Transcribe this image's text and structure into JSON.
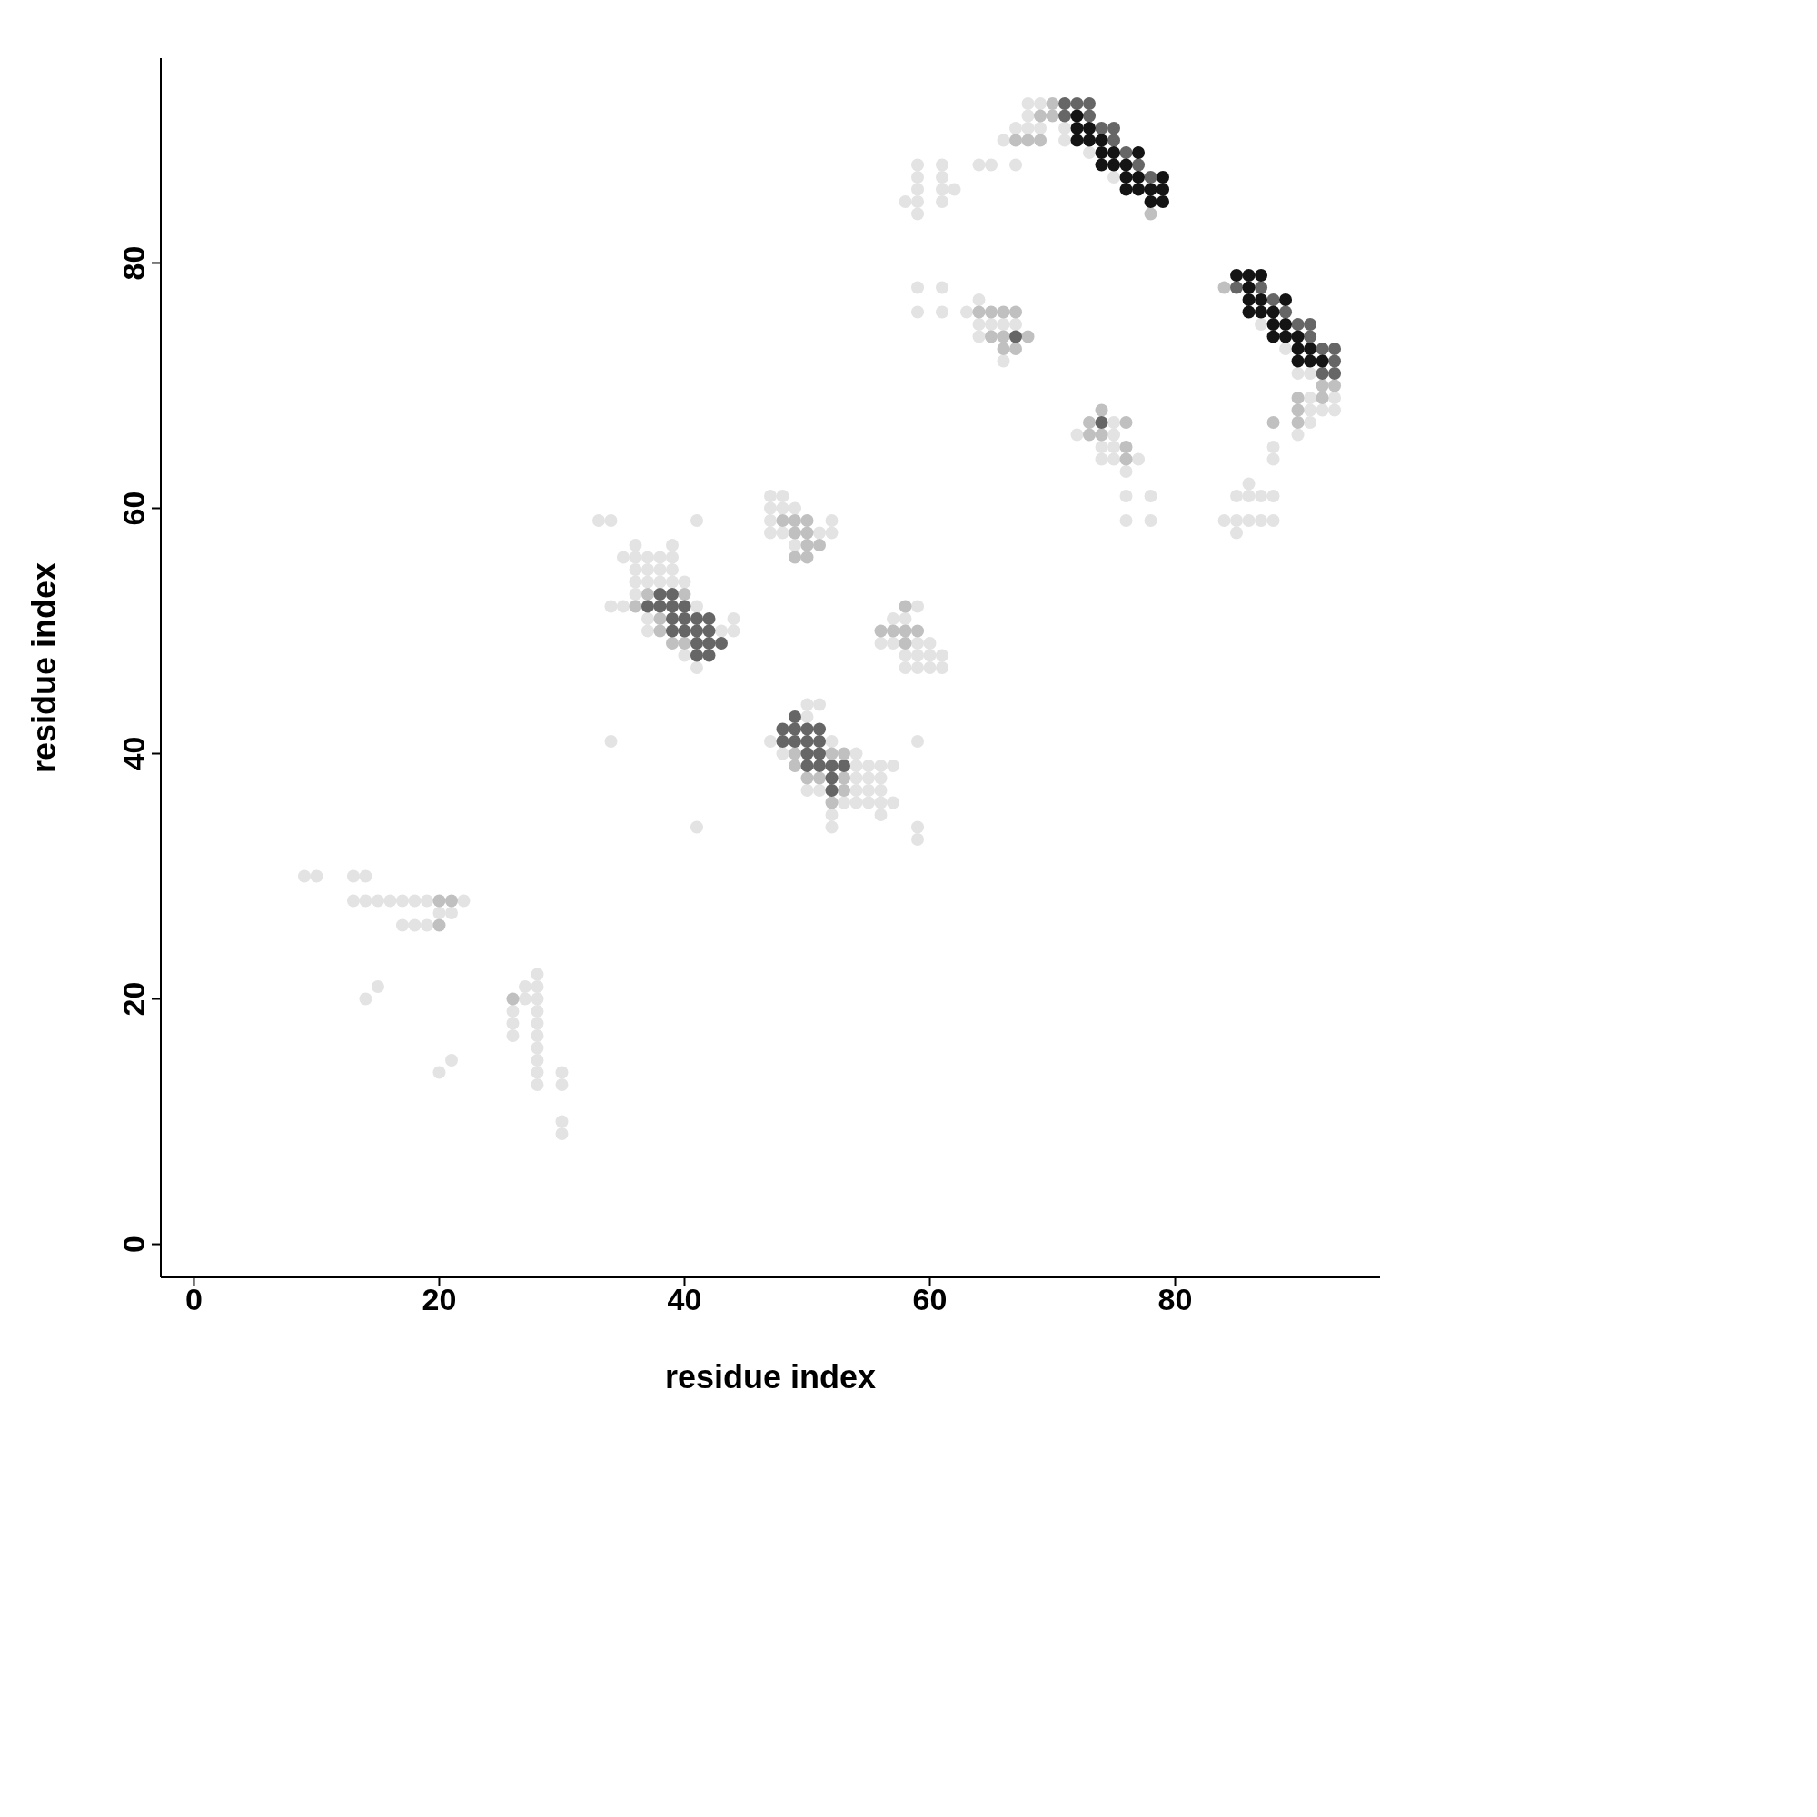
{
  "chart_data": {
    "type": "scatter",
    "xlabel": "residue index",
    "ylabel": "residue index",
    "xlim": [
      -2.7,
      96.7
    ],
    "ylim": [
      -2.7,
      96.7
    ],
    "xticks": [
      0,
      20,
      40,
      60,
      80
    ],
    "yticks": [
      0,
      20,
      40,
      60,
      80
    ],
    "marker": "circle",
    "grid": false,
    "legend": false,
    "series": [
      {
        "color": "#e3e3e3",
        "x": [
          68,
          69,
          68,
          67,
          68,
          69,
          71,
          66,
          71,
          73,
          64,
          65,
          67,
          75,
          87,
          89,
          90,
          91,
          91,
          93,
          91,
          92,
          93,
          91,
          90,
          88,
          88,
          86,
          85,
          86,
          87,
          88,
          84,
          85,
          86,
          87,
          88,
          85,
          59,
          61,
          59,
          61,
          59,
          61,
          62,
          58,
          59,
          61,
          59,
          59,
          61,
          59,
          61,
          63,
          64,
          64,
          65,
          66,
          67,
          64,
          66,
          72,
          75,
          75,
          74,
          75,
          74,
          75,
          77,
          76,
          76,
          78,
          76,
          78,
          33,
          34,
          41,
          36,
          39,
          35,
          36,
          37,
          38,
          39,
          36,
          37,
          38,
          39,
          36,
          37,
          38,
          39,
          40,
          36,
          34,
          35,
          41,
          37,
          44,
          37,
          43,
          44,
          40,
          41,
          47,
          48,
          47,
          48,
          49,
          47,
          52,
          47,
          48,
          51,
          52,
          49,
          59,
          57,
          58,
          56,
          57,
          59,
          60,
          58,
          59,
          60,
          61,
          58,
          59,
          60,
          61,
          50,
          51,
          50,
          47,
          52,
          59,
          48,
          54,
          54,
          55,
          56,
          57,
          54,
          55,
          56,
          50,
          51,
          54,
          55,
          56,
          53,
          54,
          55,
          56,
          57,
          52,
          56,
          52,
          59,
          59,
          34,
          41,
          9,
          10,
          13,
          14,
          13,
          14,
          15,
          16,
          17,
          18,
          19,
          22,
          20,
          21,
          17,
          18,
          19,
          15,
          14,
          28,
          27,
          28,
          27,
          28,
          26,
          28,
          26,
          28,
          26,
          28,
          28,
          28,
          28,
          28,
          30,
          30,
          21,
          20,
          30,
          30
        ],
        "values": [
          93,
          93,
          92,
          91,
          91,
          91,
          91,
          90,
          90,
          89,
          88,
          88,
          88,
          87,
          75,
          73,
          71,
          71,
          69,
          69,
          68,
          68,
          68,
          67,
          66,
          65,
          64,
          62,
          61,
          61,
          61,
          61,
          59,
          59,
          59,
          59,
          59,
          58,
          88,
          88,
          87,
          87,
          86,
          86,
          86,
          85,
          85,
          85,
          84,
          78,
          78,
          76,
          76,
          76,
          77,
          75,
          75,
          75,
          75,
          74,
          72,
          66,
          67,
          66,
          65,
          65,
          64,
          64,
          64,
          63,
          61,
          61,
          59,
          59,
          59,
          59,
          59,
          57,
          57,
          56,
          56,
          56,
          56,
          56,
          55,
          55,
          55,
          55,
          54,
          54,
          54,
          54,
          54,
          53,
          52,
          52,
          52,
          51,
          51,
          50,
          50,
          50,
          48,
          47,
          61,
          61,
          60,
          60,
          60,
          59,
          59,
          58,
          58,
          58,
          58,
          57,
          52,
          51,
          51,
          49,
          49,
          49,
          49,
          48,
          48,
          48,
          48,
          47,
          47,
          47,
          47,
          44,
          44,
          43,
          41,
          41,
          41,
          40,
          40,
          39,
          39,
          39,
          39,
          38,
          38,
          38,
          37,
          37,
          37,
          37,
          37,
          36,
          36,
          36,
          36,
          36,
          35,
          35,
          34,
          34,
          33,
          41,
          34,
          30,
          30,
          30,
          30,
          28,
          28,
          28,
          28,
          28,
          28,
          28,
          28,
          27,
          27,
          26,
          26,
          26,
          21,
          20,
          22,
          21,
          21,
          20,
          20,
          19,
          19,
          18,
          18,
          17,
          17,
          16,
          15,
          14,
          13,
          14,
          13,
          15,
          14,
          10,
          9
        ]
      },
      {
        "color": "#c0c0c0",
        "x": [
          70,
          69,
          70,
          67,
          68,
          69,
          78,
          84,
          92,
          93,
          90,
          92,
          90,
          88,
          90,
          64,
          65,
          66,
          67,
          65,
          66,
          68,
          66,
          67,
          74,
          73,
          76,
          73,
          74,
          76,
          76,
          37,
          40,
          36,
          38,
          38,
          39,
          40,
          48,
          49,
          50,
          49,
          50,
          50,
          51,
          49,
          50,
          56,
          57,
          58,
          59,
          58,
          58,
          49,
          52,
          53,
          49,
          50,
          51,
          53,
          53,
          52,
          20,
          21,
          20,
          26
        ],
        "values": [
          93,
          92,
          92,
          90,
          90,
          90,
          84,
          78,
          70,
          70,
          69,
          69,
          68,
          67,
          67,
          76,
          76,
          76,
          76,
          74,
          74,
          74,
          73,
          73,
          68,
          67,
          67,
          66,
          66,
          65,
          64,
          53,
          53,
          52,
          51,
          50,
          49,
          49,
          59,
          59,
          59,
          58,
          58,
          57,
          57,
          56,
          56,
          50,
          50,
          50,
          50,
          49,
          52,
          40,
          40,
          40,
          39,
          38,
          38,
          38,
          37,
          36,
          28,
          28,
          26,
          20
        ]
      },
      {
        "color": "#666666",
        "x": [
          71,
          72,
          73,
          71,
          73,
          74,
          75,
          75,
          76,
          77,
          78,
          85,
          87,
          88,
          89,
          90,
          91,
          91,
          92,
          93,
          93,
          92,
          93,
          67,
          74,
          38,
          39,
          37,
          38,
          39,
          40,
          39,
          40,
          41,
          42,
          39,
          40,
          41,
          42,
          41,
          42,
          43,
          41,
          42,
          49,
          48,
          49,
          50,
          51,
          48,
          49,
          50,
          51,
          50,
          51,
          50,
          51,
          52,
          53,
          52,
          52
        ],
        "values": [
          93,
          93,
          93,
          92,
          92,
          91,
          91,
          90,
          89,
          88,
          87,
          78,
          78,
          77,
          76,
          75,
          75,
          74,
          73,
          73,
          72,
          71,
          71,
          74,
          67,
          53,
          53,
          52,
          52,
          52,
          52,
          51,
          51,
          51,
          51,
          50,
          50,
          50,
          50,
          49,
          49,
          49,
          48,
          48,
          43,
          42,
          42,
          42,
          42,
          41,
          41,
          41,
          41,
          40,
          40,
          39,
          39,
          39,
          39,
          38,
          37
        ]
      },
      {
        "color": "#141414",
        "x": [
          72,
          72,
          73,
          72,
          73,
          74,
          74,
          75,
          77,
          74,
          75,
          76,
          76,
          77,
          79,
          76,
          77,
          78,
          79,
          78,
          79,
          85,
          86,
          87,
          86,
          86,
          87,
          89,
          86,
          87,
          88,
          88,
          89,
          88,
          89,
          90,
          90,
          91,
          90,
          91,
          92
        ],
        "values": [
          92,
          91,
          91,
          90,
          90,
          90,
          89,
          89,
          89,
          88,
          88,
          88,
          87,
          87,
          87,
          86,
          86,
          86,
          86,
          85,
          85,
          79,
          79,
          79,
          78,
          77,
          77,
          77,
          76,
          76,
          76,
          75,
          75,
          74,
          74,
          74,
          73,
          73,
          72,
          72,
          72
        ]
      }
    ]
  }
}
